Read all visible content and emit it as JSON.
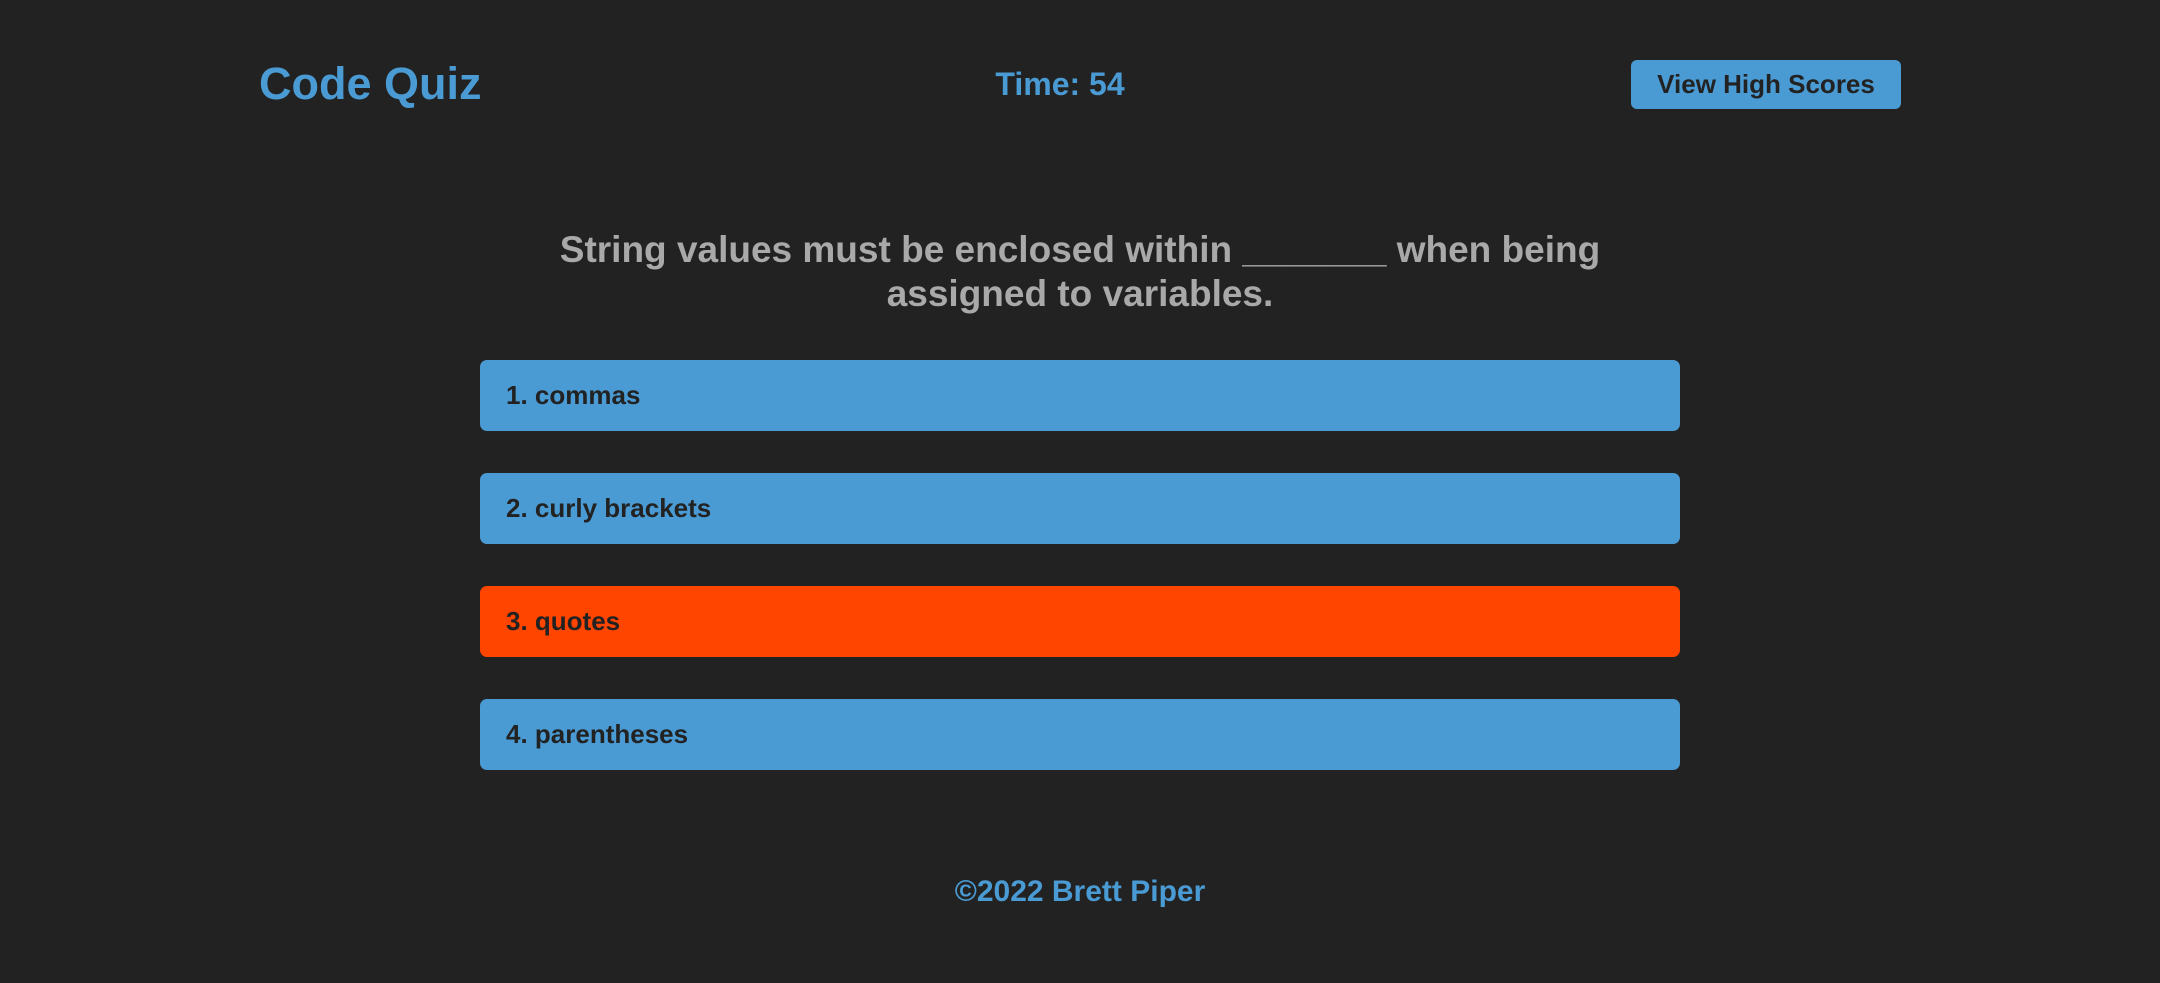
{
  "header": {
    "title": "Code Quiz",
    "timer": "Time: 54",
    "high_scores_label": "View High Scores"
  },
  "quiz": {
    "question": "String values must be enclosed within _______ when being assigned to variables.",
    "answers": [
      {
        "label": "1. commas",
        "state": "default"
      },
      {
        "label": "2. curly brackets",
        "state": "default"
      },
      {
        "label": "3. quotes",
        "state": "selected"
      },
      {
        "label": "4. parentheses",
        "state": "default"
      }
    ]
  },
  "footer": {
    "copyright": "©2022 Brett Piper"
  },
  "colors": {
    "background": "#222222",
    "accent": "#4a9bd4",
    "selected": "#ff4500",
    "question_text": "#a9a9a9"
  }
}
